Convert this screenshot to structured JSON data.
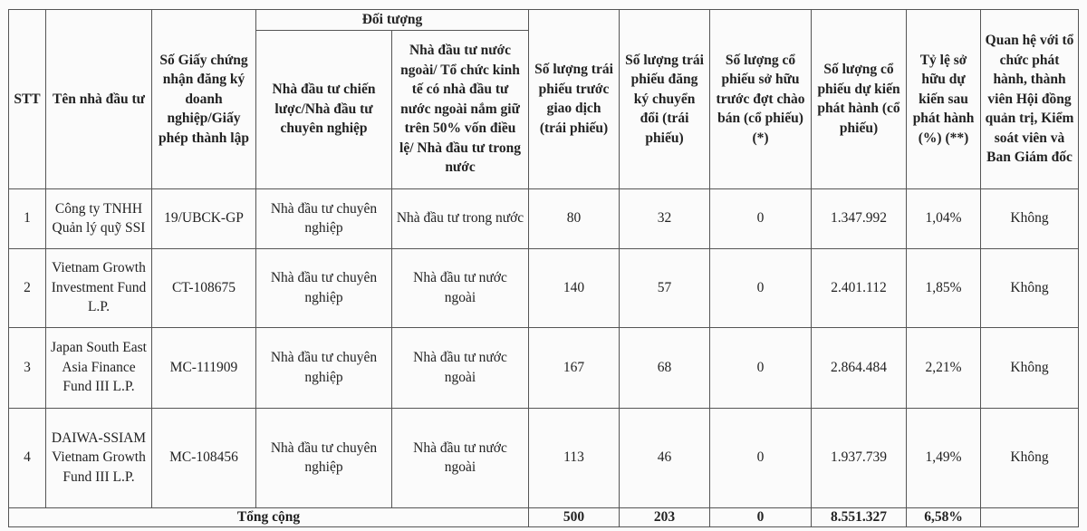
{
  "table": {
    "headers": {
      "stt": "STT",
      "name": "Tên nhà đầu tư",
      "license": "Số Giấy chứng nhận đăng ký doanh nghiệp/Giấy phép thành lập",
      "group": "Đối tượng",
      "strategic": "Nhà đầu tư chiến lược/Nhà đầu tư chuyên nghiệp",
      "foreign": "Nhà đầu tư nước ngoài/ Tổ chức kinh tế có nhà đầu tư nước ngoài nắm giữ trên 50% vốn điều lệ/ Nhà đầu tư trong nước",
      "bonds_before": "Số lượng trái phiếu trước giao dịch (trái phiếu)",
      "bonds_convert": "Số lượng trái phiếu đăng ký chuyển đổi (trái phiếu)",
      "shares_before": "Số lượng cổ phiếu sở hữu trước đợt chào bán (cổ phiếu) (*)",
      "shares_issue": "Số lượng cổ phiếu dự kiến phát hành (cổ phiếu)",
      "ratio": "Tỷ lệ sở hữu dự kiến sau phát hành (%) (**)",
      "relation": "Quan hệ với tổ chức phát hành, thành viên Hội đồng quản trị, Kiểm soát viên và Ban Giám đốc"
    },
    "rows": [
      {
        "stt": "1",
        "name": "Công ty TNHH Quản lý quỹ SSI",
        "license": "19/UBCK-GP",
        "strategic": "Nhà đầu tư chuyên nghiệp",
        "foreign": "Nhà đầu tư trong nước",
        "bonds_before": "80",
        "bonds_convert": "32",
        "shares_before": "0",
        "shares_issue": "1.347.992",
        "ratio": "1,04%",
        "relation": "Không"
      },
      {
        "stt": "2",
        "name": "Vietnam Growth Investment Fund L.P.",
        "license": "CT-108675",
        "strategic": "Nhà đầu tư chuyên nghiệp",
        "foreign": "Nhà đầu tư nước ngoài",
        "bonds_before": "140",
        "bonds_convert": "57",
        "shares_before": "0",
        "shares_issue": "2.401.112",
        "ratio": "1,85%",
        "relation": "Không"
      },
      {
        "stt": "3",
        "name": "Japan South East Asia Finance Fund III L.P.",
        "license": "MC-111909",
        "strategic": "Nhà đầu tư chuyên nghiệp",
        "foreign": "Nhà đầu tư nước ngoài",
        "bonds_before": "167",
        "bonds_convert": "68",
        "shares_before": "0",
        "shares_issue": "2.864.484",
        "ratio": "2,21%",
        "relation": "Không"
      },
      {
        "stt": "4",
        "name": "DAIWA-SSIAM Vietnam Growth Fund III L.P.",
        "license": "MC-108456",
        "strategic": "Nhà đầu tư chuyên nghiệp",
        "foreign": "Nhà đầu tư nước ngoài",
        "bonds_before": "113",
        "bonds_convert": "46",
        "shares_before": "0",
        "shares_issue": "1.937.739",
        "ratio": "1,49%",
        "relation": "Không"
      }
    ],
    "total": {
      "label": "Tổng cộng",
      "bonds_before": "500",
      "bonds_convert": "203",
      "shares_before": "0",
      "shares_issue": "8.551.327",
      "ratio": "6,58%",
      "relation": ""
    }
  }
}
